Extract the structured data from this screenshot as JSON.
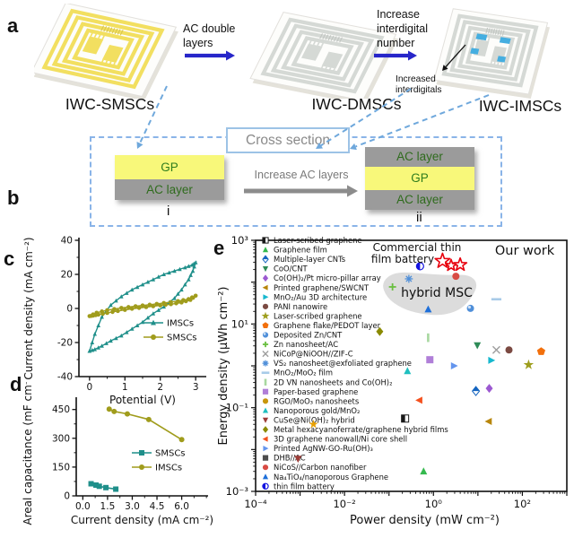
{
  "figure": {
    "panel_letters": {
      "a": "a",
      "b": "b",
      "c": "c",
      "d": "d",
      "e": "e"
    },
    "panel_a": {
      "devices": [
        {
          "label": "IWC-SMSCs"
        },
        {
          "label": "IWC-DMSCs"
        },
        {
          "label": "IWC-IMSCs"
        }
      ],
      "arrow1_label_lines": [
        "AC double",
        "layers"
      ],
      "arrow2_label_lines": [
        "Increase",
        "interdigital",
        "number"
      ],
      "annotation_lines": [
        "Increased",
        "interdigitals"
      ]
    },
    "panel_b": {
      "box_label": "Cross section",
      "left_stack": {
        "layers": [
          "GP",
          "AC layer"
        ],
        "tag": "i"
      },
      "arrow_label": "Increase AC layers",
      "right_stack": {
        "layers": [
          "AC layer",
          "GP",
          "AC layer"
        ],
        "tag": "ii"
      }
    }
  },
  "colors": {
    "teal": "#1f8f8a",
    "olive": "#a09c1c",
    "device_yellow": "#f2df60",
    "device_gray": "#d5d9d5",
    "accent_blue": "#45aee0",
    "arrow_blue": "#2726c9",
    "dashed_blue": "#6fa8dc",
    "our_work_red": "#e8000d",
    "blob_gray": "#dcdcdc"
  },
  "chart_data": [
    {
      "id": "cv",
      "type": "line",
      "panel": "c",
      "xlabel": "Potential (V)",
      "ylabel": "Current density (mA cm⁻²)",
      "xlim": [
        -0.3,
        3.3
      ],
      "ylim": [
        -40,
        40
      ],
      "xticks": [
        0,
        1,
        2,
        3
      ],
      "yticks": [
        -40,
        -20,
        0,
        20,
        40
      ],
      "xminor": 0.5,
      "yminor": 10,
      "series": [
        {
          "name": "IMSCs",
          "color": "#1f8f8a",
          "marker": "triangle-up",
          "closed": true,
          "points": [
            [
              0,
              -25
            ],
            [
              0.15,
              -15
            ],
            [
              0.35,
              -5
            ],
            [
              0.6,
              2
            ],
            [
              0.9,
              7
            ],
            [
              1.2,
              11
            ],
            [
              1.5,
              14
            ],
            [
              1.8,
              17
            ],
            [
              2.1,
              20
            ],
            [
              2.4,
              22
            ],
            [
              2.7,
              24
            ],
            [
              2.9,
              25.5
            ],
            [
              3,
              27
            ],
            [
              2.92,
              22
            ],
            [
              2.8,
              17
            ],
            [
              2.6,
              11
            ],
            [
              2.4,
              6
            ],
            [
              2.1,
              1
            ],
            [
              1.8,
              -3
            ],
            [
              1.5,
              -8
            ],
            [
              1.2,
              -12
            ],
            [
              0.9,
              -16
            ],
            [
              0.6,
              -19
            ],
            [
              0.35,
              -22
            ],
            [
              0.15,
              -24
            ]
          ]
        },
        {
          "name": "SMSCs",
          "color": "#a09c1c",
          "marker": "circle",
          "closed": true,
          "points": [
            [
              0,
              -4.5
            ],
            [
              0.2,
              -2.5
            ],
            [
              0.5,
              -1
            ],
            [
              0.9,
              0.3
            ],
            [
              1.3,
              1.3
            ],
            [
              1.7,
              2.2
            ],
            [
              2.1,
              3.2
            ],
            [
              2.5,
              4.3
            ],
            [
              2.8,
              5.5
            ],
            [
              3,
              7.5
            ],
            [
              2.85,
              5
            ],
            [
              2.6,
              3.5
            ],
            [
              2.3,
              2.5
            ],
            [
              2,
              1.8
            ],
            [
              1.6,
              0.8
            ],
            [
              1.2,
              -0.2
            ],
            [
              0.8,
              -1.5
            ],
            [
              0.5,
              -2.6
            ],
            [
              0.25,
              -3.6
            ],
            [
              0.1,
              -4.2
            ]
          ]
        }
      ],
      "legend_order": [
        "IMSCs",
        "SMSCs"
      ]
    },
    {
      "id": "capacitance",
      "type": "line",
      "panel": "d",
      "xlabel": "Current density (mA cm⁻²)",
      "ylabel": "Areal capacitance (mF cm⁻²)",
      "xlim": [
        -0.4,
        7.6
      ],
      "ylim": [
        0,
        500
      ],
      "xticks": [
        0,
        1.5,
        3,
        4.5,
        6
      ],
      "xtick_labels": [
        "0.0",
        "1.5",
        "3.0",
        "4.5",
        "6.0"
      ],
      "yticks": [
        0,
        150,
        300,
        450
      ],
      "xminor": 0.75,
      "yminor": 75,
      "series": [
        {
          "name": "SMSCs",
          "color": "#1f8f8a",
          "marker": "square",
          "points": [
            [
              0.5,
              63
            ],
            [
              0.8,
              56
            ],
            [
              1,
              50
            ],
            [
              1.4,
              43
            ],
            [
              2,
              35
            ]
          ]
        },
        {
          "name": "IMSCs",
          "color": "#a09c1c",
          "marker": "circle",
          "points": [
            [
              1.6,
              452
            ],
            [
              1.9,
              440
            ],
            [
              2.7,
              427
            ],
            [
              4,
              398
            ],
            [
              6,
              293
            ]
          ]
        }
      ],
      "legend_order": [
        "SMSCs",
        "IMSCs"
      ]
    },
    {
      "id": "ragone",
      "type": "scatter",
      "panel": "e",
      "xlabel": "Power density (mW cm⁻²)",
      "ylabel": "Energy density (µWh cm⁻²)",
      "xlim": [
        0.0001,
        1000
      ],
      "ylim": [
        0.001,
        1000
      ],
      "xtick_labels": [
        {
          "v": 0.0001,
          "t": "10⁻⁴"
        },
        {
          "v": 0.01,
          "t": "10⁻²"
        },
        {
          "v": 1,
          "t": "10⁰"
        },
        {
          "v": 100,
          "t": "10²"
        }
      ],
      "ytick_labels": [
        {
          "v": 1000,
          "t": "10³"
        },
        {
          "v": 10,
          "t": "10¹"
        },
        {
          "v": 0.1,
          "t": "10⁻¹"
        },
        {
          "v": 0.001,
          "t": "10⁻³"
        }
      ],
      "legend_items": [
        {
          "label": "Laser-scribed graphene",
          "marker": "half-square",
          "color": "#1a1a1a",
          "x": 0.23,
          "y": 0.055
        },
        {
          "label": "Graphene film",
          "marker": "triangle-up",
          "color": "#35b94e",
          "x": 0.6,
          "y": 0.003
        },
        {
          "label": "Multiple-layer CNTs",
          "marker": "half-diamond",
          "color": "#1565c0",
          "x": 9,
          "y": 0.25
        },
        {
          "label": "CoO/CNT",
          "marker": "triangle-down",
          "color": "#2e8b57",
          "x": 9.7,
          "y": 3.1
        },
        {
          "label": "Co(OH)₂/Pt micro-pillar array",
          "marker": "diamond",
          "color": "#9c59d1",
          "x": 18,
          "y": 0.29
        },
        {
          "label": "Printed graphene/SWCNT",
          "marker": "triangle-left",
          "color": "#b8860b",
          "x": 17.5,
          "y": 0.047
        },
        {
          "label": "MnO₂/Au 3D architecture",
          "marker": "triangle-right",
          "color": "#17b8ce",
          "x": 20,
          "y": 1.35
        },
        {
          "label": "PANI nanowire",
          "marker": "circle",
          "color": "#7b4a42",
          "x": 50,
          "y": 2.4
        },
        {
          "label": "Laser-scribed graphene",
          "marker": "star",
          "color": "#9e9e1e",
          "x": 138,
          "y": 1.06
        },
        {
          "label": "Graphene flake/PEDOT layer",
          "marker": "pentagon",
          "color": "#f2700c",
          "x": 265,
          "y": 2.2
        },
        {
          "label": "Deposited Zn/CNT",
          "marker": "sphere",
          "color": "#4f8fd9",
          "x": 6.8,
          "y": 23.6
        },
        {
          "label": "Zn nanosheet/AC",
          "marker": "plus",
          "color": "#6abf40",
          "x": 0.12,
          "y": 77
        },
        {
          "label": "NiCoP@NiOOH//ZIF-C",
          "marker": "x",
          "color": "#9e9e9e",
          "x": 26,
          "y": 2.4
        },
        {
          "label": "VS₂ nanosheet@exfoliated graphene",
          "marker": "asterisk",
          "color": "#4f8fd9",
          "x": 0.28,
          "y": 120
        },
        {
          "label": "MnO₂/MoO₂ film",
          "marker": "dash",
          "color": "#a8cbe8",
          "x": 26,
          "y": 39
        },
        {
          "label": "2D VN nanosheets and Co(OH)₂",
          "marker": "vbar",
          "color": "#a8d8a0",
          "x": 0.76,
          "y": 4.7
        },
        {
          "label": "Paper-based graphene",
          "marker": "square",
          "color": "#b07fd8",
          "x": 0.83,
          "y": 1.4
        },
        {
          "label": "RGO/MoO₃ nanosheets",
          "marker": "circle",
          "color": "#c8960c",
          "x": null,
          "y": null
        },
        {
          "label": "Nanoporous gold/MnO₂",
          "marker": "triangle-up",
          "color": "#1fbfbf",
          "x": 0.26,
          "y": 0.75
        },
        {
          "label": "CuSe@Ni(OH)₂ hybrid",
          "marker": "triangle-down",
          "color": "#9e3d38",
          "x": 0.0009,
          "y": 0.006
        },
        {
          "label": "Metal hexacyanoferrate/graphene hybrid films",
          "marker": "diamond",
          "color": "#8a8a00",
          "x": 0.062,
          "y": 6.6
        },
        {
          "label": "3D graphene nanowall/Ni core shell",
          "marker": "triangle-left",
          "color": "#f4511e",
          "x": 0.48,
          "y": 0.15
        },
        {
          "label": "Printed AgNW-GO-Ru(OH)₃",
          "marker": "triangle-right",
          "color": "#6495ed",
          "x": 2.9,
          "y": 1.0
        },
        {
          "label": "DHB//AC",
          "marker": "square",
          "color": "#4d4d4d",
          "x": null,
          "y": null
        },
        {
          "label": "NiCoS//Carbon nanofiber",
          "marker": "circle",
          "color": "#d84b44",
          "x": 3.2,
          "y": 138
        },
        {
          "label": "Na₄TiO₄/nanoporous Graphene",
          "marker": "triangle-up",
          "color": "#1e6fd9",
          "x": 0.76,
          "y": 22.4
        },
        {
          "label": "thin film battery",
          "marker": "half-circle",
          "color": "#1414e0",
          "x": 0.5,
          "y": 240
        }
      ],
      "extra_points": [
        {
          "marker": "star",
          "color": "#e8a000",
          "x": 0.002,
          "y": 0.04
        }
      ],
      "our_work": {
        "label": "Our work",
        "color": "#e8000d",
        "marker": "open-star",
        "points": [
          [
            1.6,
            320
          ],
          [
            2.5,
            250
          ],
          [
            4,
            260
          ]
        ]
      },
      "annotations": {
        "commercial_lines": [
          "Commercial thin",
          "film battery"
        ],
        "hybrid": "hybrid MSC"
      }
    }
  ]
}
